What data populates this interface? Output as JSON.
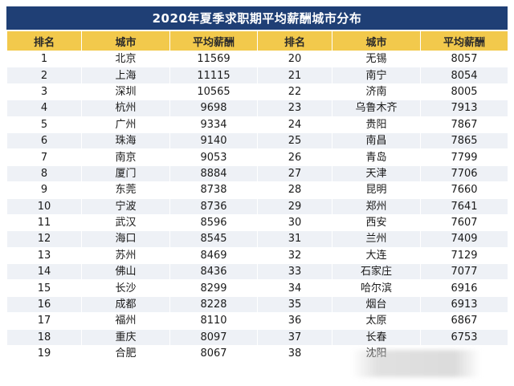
{
  "title": "2020年夏季求职期平均薪酬城市分布",
  "headers": {
    "rank": "排名",
    "city": "城市",
    "salary": "平均薪酬"
  },
  "rows": [
    {
      "left": {
        "rank": "1",
        "city": "北京",
        "salary": "11569"
      },
      "right": {
        "rank": "20",
        "city": "无锡",
        "salary": "8057"
      }
    },
    {
      "left": {
        "rank": "2",
        "city": "上海",
        "salary": "11115"
      },
      "right": {
        "rank": "21",
        "city": "南宁",
        "salary": "8054"
      }
    },
    {
      "left": {
        "rank": "3",
        "city": "深圳",
        "salary": "10565"
      },
      "right": {
        "rank": "22",
        "city": "济南",
        "salary": "8005"
      }
    },
    {
      "left": {
        "rank": "4",
        "city": "杭州",
        "salary": "9698"
      },
      "right": {
        "rank": "23",
        "city": "乌鲁木齐",
        "salary": "7913"
      }
    },
    {
      "left": {
        "rank": "5",
        "city": "广州",
        "salary": "9334"
      },
      "right": {
        "rank": "24",
        "city": "贵阳",
        "salary": "7867"
      }
    },
    {
      "left": {
        "rank": "6",
        "city": "珠海",
        "salary": "9140"
      },
      "right": {
        "rank": "25",
        "city": "南昌",
        "salary": "7865"
      }
    },
    {
      "left": {
        "rank": "7",
        "city": "南京",
        "salary": "9053"
      },
      "right": {
        "rank": "26",
        "city": "青岛",
        "salary": "7799"
      }
    },
    {
      "left": {
        "rank": "8",
        "city": "厦门",
        "salary": "8884"
      },
      "right": {
        "rank": "27",
        "city": "天津",
        "salary": "7706"
      }
    },
    {
      "left": {
        "rank": "9",
        "city": "东莞",
        "salary": "8738"
      },
      "right": {
        "rank": "28",
        "city": "昆明",
        "salary": "7660"
      }
    },
    {
      "left": {
        "rank": "10",
        "city": "宁波",
        "salary": "8736"
      },
      "right": {
        "rank": "29",
        "city": "郑州",
        "salary": "7641"
      }
    },
    {
      "left": {
        "rank": "11",
        "city": "武汉",
        "salary": "8596"
      },
      "right": {
        "rank": "30",
        "city": "西安",
        "salary": "7607"
      }
    },
    {
      "left": {
        "rank": "12",
        "city": "海口",
        "salary": "8545"
      },
      "right": {
        "rank": "31",
        "city": "兰州",
        "salary": "7409"
      }
    },
    {
      "left": {
        "rank": "13",
        "city": "苏州",
        "salary": "8469"
      },
      "right": {
        "rank": "32",
        "city": "大连",
        "salary": "7129"
      }
    },
    {
      "left": {
        "rank": "14",
        "city": "佛山",
        "salary": "8436"
      },
      "right": {
        "rank": "33",
        "city": "石家庄",
        "salary": "7077"
      }
    },
    {
      "left": {
        "rank": "15",
        "city": "长沙",
        "salary": "8299"
      },
      "right": {
        "rank": "34",
        "city": "哈尔滨",
        "salary": "6916"
      }
    },
    {
      "left": {
        "rank": "16",
        "city": "成都",
        "salary": "8228"
      },
      "right": {
        "rank": "35",
        "city": "烟台",
        "salary": "6913"
      }
    },
    {
      "left": {
        "rank": "17",
        "city": "福州",
        "salary": "8110"
      },
      "right": {
        "rank": "36",
        "city": "太原",
        "salary": "6867"
      }
    },
    {
      "left": {
        "rank": "18",
        "city": "重庆",
        "salary": "8097"
      },
      "right": {
        "rank": "37",
        "city": "长春",
        "salary": "6753"
      }
    },
    {
      "left": {
        "rank": "19",
        "city": "合肥",
        "salary": "8067"
      },
      "right": {
        "rank": "38",
        "city": "沈阳",
        "salary": ""
      }
    }
  ],
  "colors": {
    "title_bg": "#1f3f75",
    "header_bg": "#f2c94c",
    "row_alt": "#eef1f6"
  }
}
